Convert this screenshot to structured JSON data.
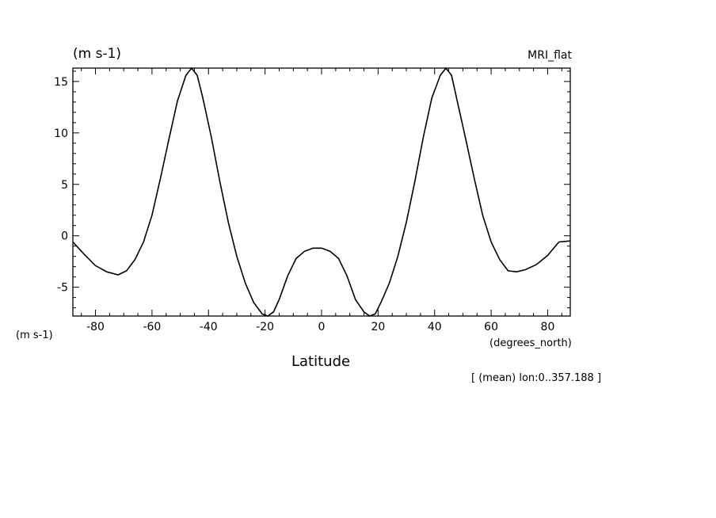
{
  "chart_data": {
    "type": "line",
    "y_units_label": "(m s-1)",
    "y_units_side_label": "(m s-1)",
    "run_label": "MRI_flat",
    "x_units_label": "(degrees_north)",
    "xlabel": "Latitude",
    "subset_note": "[ (mean) lon:0..357.188 ]",
    "xlim": [
      -88,
      88
    ],
    "ylim": [
      -7.8,
      16.3
    ],
    "x_ticks": [
      -80,
      -60,
      -40,
      -20,
      0,
      20,
      40,
      60,
      80
    ],
    "x_tick_labels": [
      "-80",
      "-60",
      "-40",
      "-20",
      "0",
      "20",
      "40",
      "60",
      "80"
    ],
    "y_ticks": [
      -5,
      0,
      5,
      10,
      15
    ],
    "y_tick_labels": [
      "-5",
      "0",
      "5",
      "10",
      "15"
    ],
    "grid": false,
    "series": [
      {
        "color": "#000000",
        "x": [
          -88,
          -84,
          -80,
          -76,
          -72,
          -69,
          -66,
          -63,
          -60,
          -57,
          -54,
          -51,
          -48,
          -46,
          -44,
          -42,
          -39,
          -36,
          -33,
          -30,
          -27,
          -24,
          -21,
          -19,
          -17,
          -15,
          -12,
          -9,
          -6,
          -3,
          0,
          3,
          6,
          9,
          12,
          15,
          17,
          19,
          21,
          24,
          27,
          30,
          33,
          36,
          39,
          42,
          44,
          46,
          48,
          51,
          54,
          57,
          60,
          63,
          66,
          69,
          72,
          76,
          80,
          84,
          88
        ],
        "y": [
          -0.6,
          -1.8,
          -2.9,
          -3.5,
          -3.8,
          -3.4,
          -2.3,
          -0.6,
          2.0,
          5.6,
          9.4,
          13.1,
          15.6,
          16.3,
          15.6,
          13.4,
          9.6,
          5.3,
          1.3,
          -2.0,
          -4.6,
          -6.5,
          -7.6,
          -7.8,
          -7.4,
          -6.2,
          -3.9,
          -2.2,
          -1.5,
          -1.2,
          -1.2,
          -1.5,
          -2.2,
          -3.9,
          -6.2,
          -7.4,
          -7.8,
          -7.6,
          -6.5,
          -4.6,
          -2.0,
          1.3,
          5.3,
          9.6,
          13.4,
          15.6,
          16.3,
          15.6,
          13.1,
          9.4,
          5.6,
          2.0,
          -0.6,
          -2.3,
          -3.4,
          -3.5,
          -3.3,
          -2.8,
          -1.9,
          -0.6,
          -0.5
        ]
      }
    ]
  }
}
